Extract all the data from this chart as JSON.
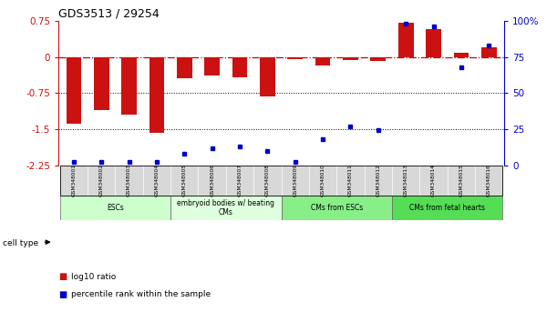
{
  "title": "GDS3513 / 29254",
  "samples": [
    "GSM348001",
    "GSM348002",
    "GSM348003",
    "GSM348004",
    "GSM348005",
    "GSM348006",
    "GSM348007",
    "GSM348008",
    "GSM348009",
    "GSM348010",
    "GSM348011",
    "GSM348012",
    "GSM348013",
    "GSM348014",
    "GSM348015",
    "GSM348016"
  ],
  "log10_ratio": [
    -1.38,
    -1.1,
    -1.2,
    -1.58,
    -0.45,
    -0.38,
    -0.42,
    -0.82,
    -0.05,
    -0.18,
    -0.07,
    -0.08,
    0.72,
    0.58,
    0.08,
    0.2
  ],
  "percentile_rank": [
    2,
    2,
    2,
    2,
    8,
    12,
    13,
    10,
    2,
    18,
    27,
    24,
    98,
    96,
    68,
    83
  ],
  "cell_groups": [
    {
      "label": "ESCs",
      "start": 0,
      "end": 3,
      "color": "#ccffcc"
    },
    {
      "label": "embryoid bodies w/ beating\nCMs",
      "start": 4,
      "end": 7,
      "color": "#ddffdd"
    },
    {
      "label": "CMs from ESCs",
      "start": 8,
      "end": 11,
      "color": "#88ee88"
    },
    {
      "label": "CMs from fetal hearts",
      "start": 12,
      "end": 15,
      "color": "#55dd55"
    }
  ],
  "ylim_left": [
    -2.25,
    0.75
  ],
  "ylim_right": [
    0,
    100
  ],
  "yticks_left": [
    -2.25,
    -1.5,
    -0.75,
    0,
    0.75
  ],
  "yticks_right": [
    0,
    25,
    50,
    75,
    100
  ],
  "bar_color": "#cc1111",
  "dot_color": "#0000cc",
  "hline_color": "#cc0000",
  "dotline_color": "black",
  "legend_log10": "log10 ratio",
  "legend_pct": "percentile rank within the sample",
  "cell_type_label": "cell type",
  "bg_color": "#ffffff"
}
